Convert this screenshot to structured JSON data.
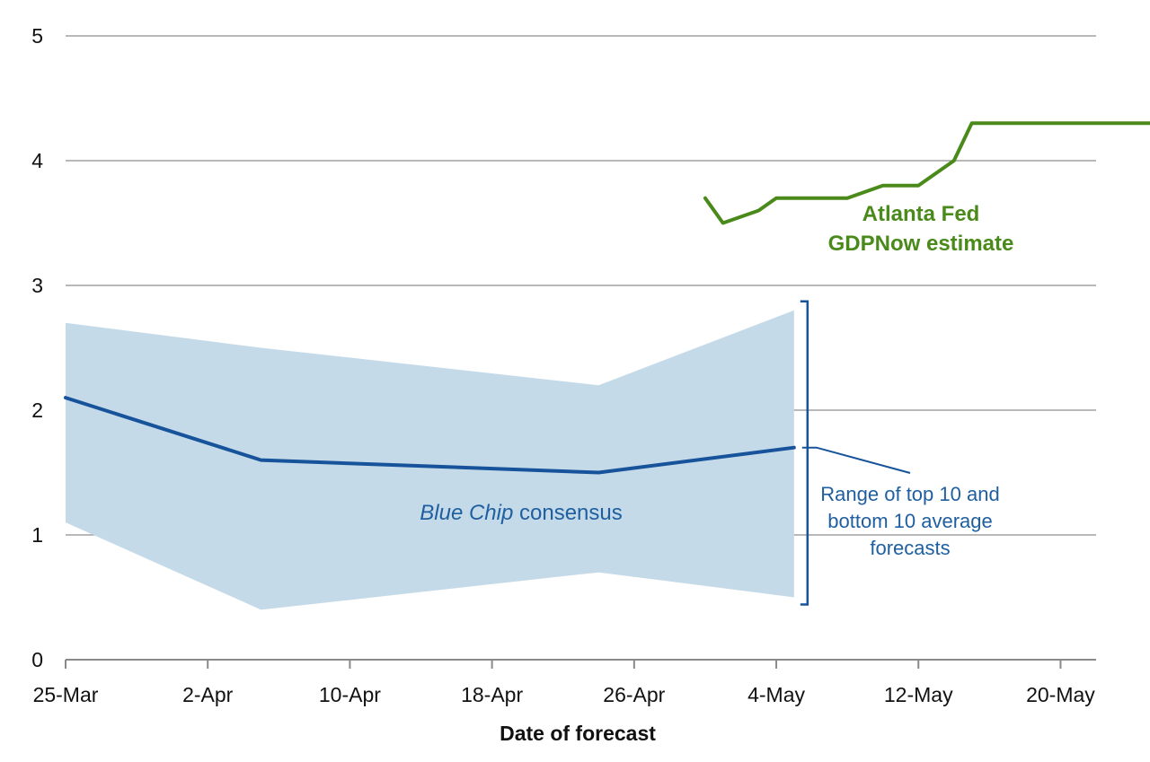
{
  "chart_data": {
    "type": "line",
    "xlabel": "Date of forecast",
    "ylabel": "",
    "x_tick_labels": [
      "25-Mar",
      "2-Apr",
      "10-Apr",
      "18-Apr",
      "26-Apr",
      "4-May",
      "12-May",
      "20-May"
    ],
    "x_tick_days": [
      0,
      8,
      16,
      24,
      32,
      40,
      48,
      56
    ],
    "x_domain_days": [
      0,
      58
    ],
    "y_ticks": [
      0,
      1,
      2,
      3,
      4,
      5
    ],
    "ylim": [
      0,
      5
    ],
    "grid": true,
    "colors": {
      "band": "#c5dae8",
      "consensus": "#17539b",
      "gdpnow": "#4a8a1a",
      "grid": "#a0a0a0",
      "bracket": "#17539b",
      "annotation_blue": "#1f5fa0"
    },
    "series": [
      {
        "name": "Blue Chip consensus",
        "x": [
          "25-Mar",
          "5-Apr",
          "24-Apr",
          "4-May"
        ],
        "x_days": [
          0,
          11,
          30,
          41
        ],
        "values": [
          2.1,
          1.6,
          1.5,
          1.7
        ]
      },
      {
        "name": "Atlanta Fed GDPNow estimate",
        "x": [
          "30-Apr",
          "1-May",
          "3-May",
          "5-May",
          "9-May",
          "11-May",
          "12-May",
          "13-May",
          "14-May",
          "15-May",
          "16-May",
          "26-May"
        ],
        "x_days": [
          36,
          37,
          39,
          40,
          44,
          46,
          47,
          48,
          49,
          50,
          51,
          61
        ],
        "values": [
          3.7,
          3.5,
          3.6,
          3.7,
          3.7,
          3.8,
          3.8,
          3.8,
          3.9,
          4.0,
          4.3,
          4.3
        ]
      }
    ],
    "band": {
      "name": "Range of top 10 and bottom 10 average forecasts",
      "x_days": [
        0,
        11,
        30,
        41
      ],
      "upper": [
        2.7,
        2.5,
        2.2,
        2.8
      ],
      "lower": [
        1.1,
        0.4,
        0.7,
        0.5
      ]
    },
    "annotations": {
      "gdpnow_line1": "Atlanta Fed",
      "gdpnow_line2": "GDPNow estimate",
      "consensus_italic": "Blue Chip",
      "consensus_rest": " consensus",
      "range_line1": "Range of top 10 and",
      "range_line2": "bottom 10 average",
      "range_line3": "forecasts"
    }
  }
}
